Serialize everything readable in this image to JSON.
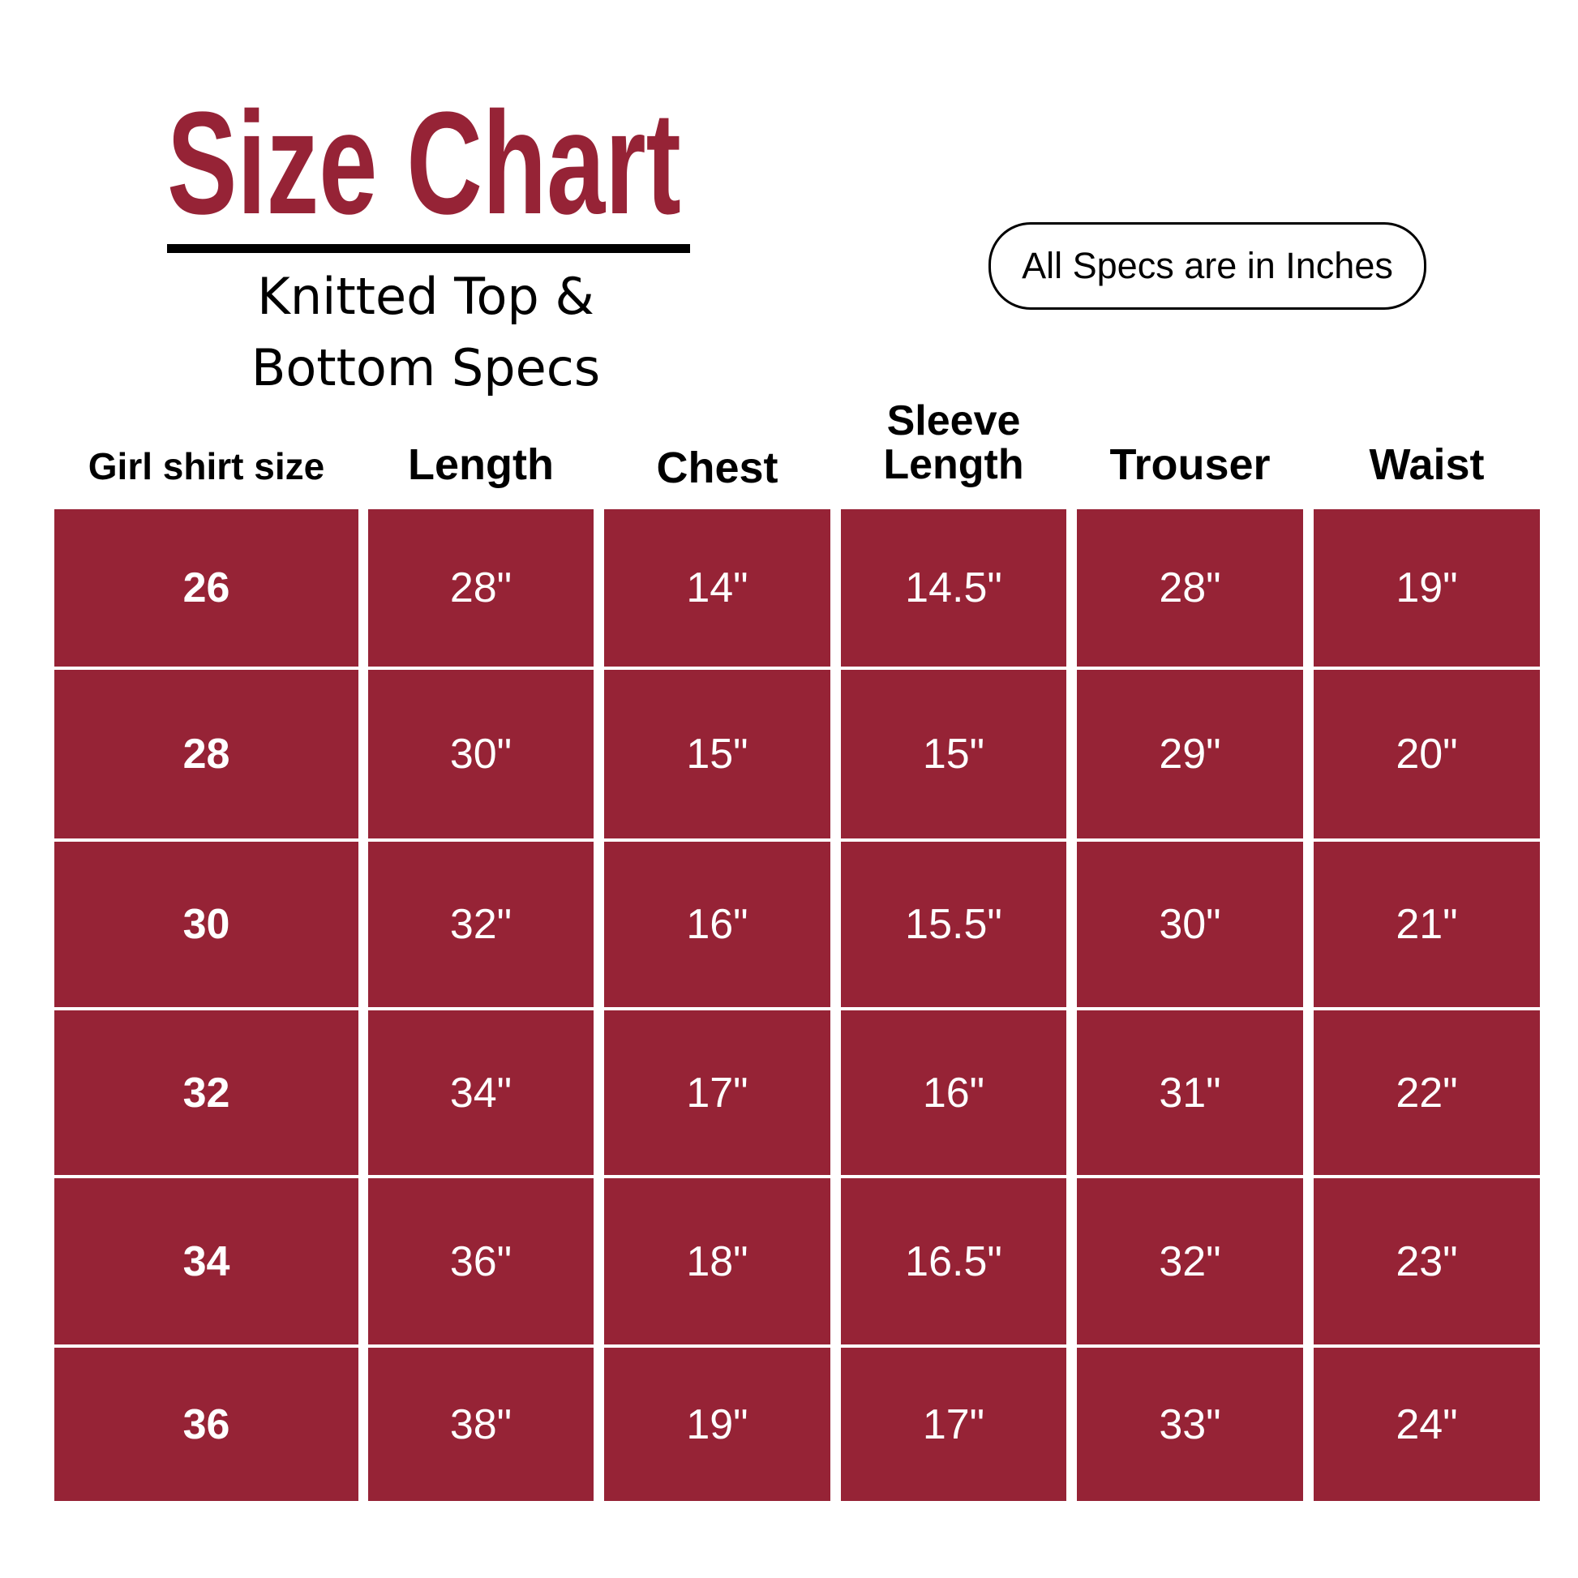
{
  "title": "Size Chart",
  "subtitle": [
    "Knitted Top &",
    "Bottom Specs"
  ],
  "units_note": "All Specs are in Inches",
  "colors": {
    "accent": "#962336",
    "cell_text": "#ffffff"
  },
  "table": {
    "headers": [
      "Girl shirt size",
      "Length",
      "Chest",
      "Sleeve Length",
      "Trouser",
      "Waist"
    ],
    "rows": [
      [
        "26",
        "28\"",
        "14\"",
        "14.5\"",
        "28\"",
        "19\""
      ],
      [
        "28",
        "30\"",
        "15\"",
        "15\"",
        "29\"",
        "20\""
      ],
      [
        "30",
        "32\"",
        "16\"",
        "15.5\"",
        "30\"",
        "21\""
      ],
      [
        "32",
        "34\"",
        "17\"",
        "16\"",
        "31\"",
        "22\""
      ],
      [
        "34",
        "36\"",
        "18\"",
        "16.5\"",
        "32\"",
        "23\""
      ],
      [
        "36",
        "38\"",
        "19\"",
        "17\"",
        "33\"",
        "24\""
      ]
    ]
  }
}
